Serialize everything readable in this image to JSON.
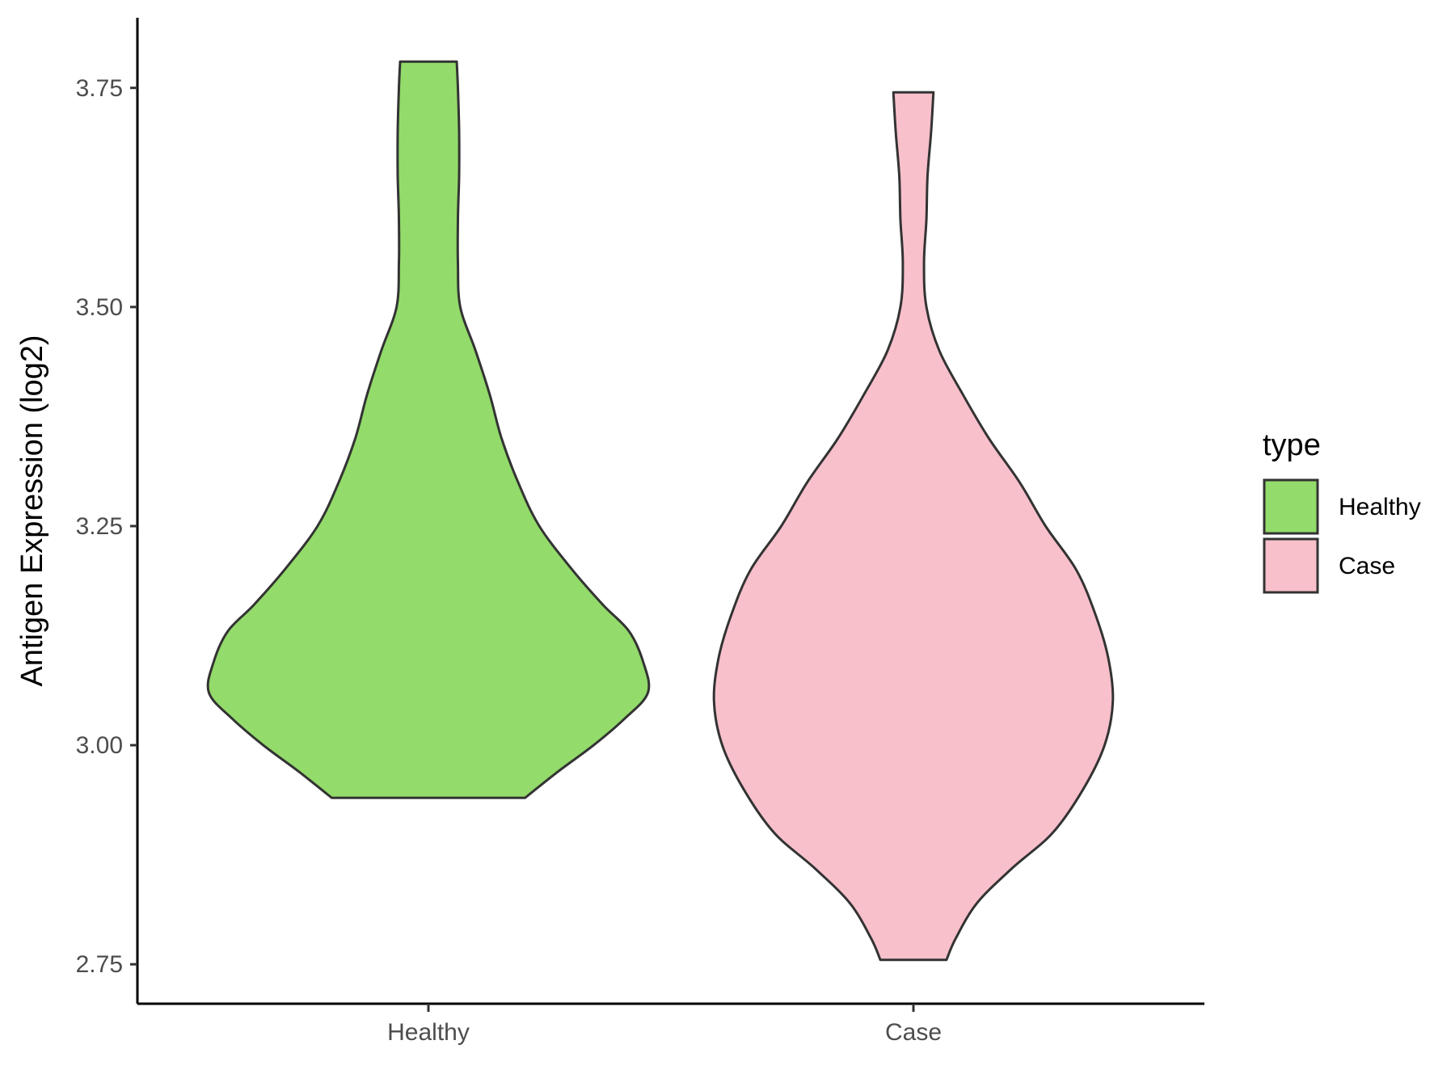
{
  "chart_data": {
    "type": "violin",
    "title": "",
    "xlabel": "",
    "ylabel": "Antigen Expression (log2)",
    "ylim": [
      2.705,
      3.83
    ],
    "yticks": [
      "2.75",
      "3.00",
      "3.25",
      "3.50",
      "3.75"
    ],
    "categories": [
      "Healthy",
      "Case"
    ],
    "grid": false,
    "legend": {
      "title": "type",
      "position": "right",
      "items": [
        {
          "label": "Healthy",
          "color": "#93DB6A"
        },
        {
          "label": "Case",
          "color": "#F8C0CB"
        }
      ]
    },
    "series": [
      {
        "name": "Healthy",
        "color": "#93DB6A",
        "min": 2.94,
        "max": 3.78,
        "density_profile": [
          [
            2.94,
            0.41
          ],
          [
            2.97,
            0.55
          ],
          [
            3.0,
            0.7
          ],
          [
            3.03,
            0.83
          ],
          [
            3.06,
            0.93
          ],
          [
            3.095,
            0.91
          ],
          [
            3.13,
            0.85
          ],
          [
            3.16,
            0.74
          ],
          [
            3.2,
            0.61
          ],
          [
            3.25,
            0.47
          ],
          [
            3.3,
            0.38
          ],
          [
            3.35,
            0.31
          ],
          [
            3.4,
            0.26
          ],
          [
            3.45,
            0.2
          ],
          [
            3.5,
            0.135
          ],
          [
            3.55,
            0.125
          ],
          [
            3.6,
            0.125
          ],
          [
            3.65,
            0.13
          ],
          [
            3.7,
            0.13
          ],
          [
            3.75,
            0.125
          ],
          [
            3.78,
            0.12
          ]
        ]
      },
      {
        "name": "Case",
        "color": "#F8C0CB",
        "min": 2.755,
        "max": 3.745,
        "density_profile": [
          [
            2.755,
            0.14
          ],
          [
            2.78,
            0.18
          ],
          [
            2.82,
            0.27
          ],
          [
            2.86,
            0.42
          ],
          [
            2.9,
            0.59
          ],
          [
            2.95,
            0.72
          ],
          [
            3.0,
            0.81
          ],
          [
            3.05,
            0.845
          ],
          [
            3.1,
            0.825
          ],
          [
            3.15,
            0.77
          ],
          [
            3.2,
            0.69
          ],
          [
            3.25,
            0.56
          ],
          [
            3.3,
            0.45
          ],
          [
            3.35,
            0.32
          ],
          [
            3.4,
            0.21
          ],
          [
            3.45,
            0.11
          ],
          [
            3.5,
            0.055
          ],
          [
            3.55,
            0.045
          ],
          [
            3.6,
            0.055
          ],
          [
            3.65,
            0.06
          ],
          [
            3.7,
            0.075
          ],
          [
            3.745,
            0.085
          ]
        ]
      }
    ]
  }
}
